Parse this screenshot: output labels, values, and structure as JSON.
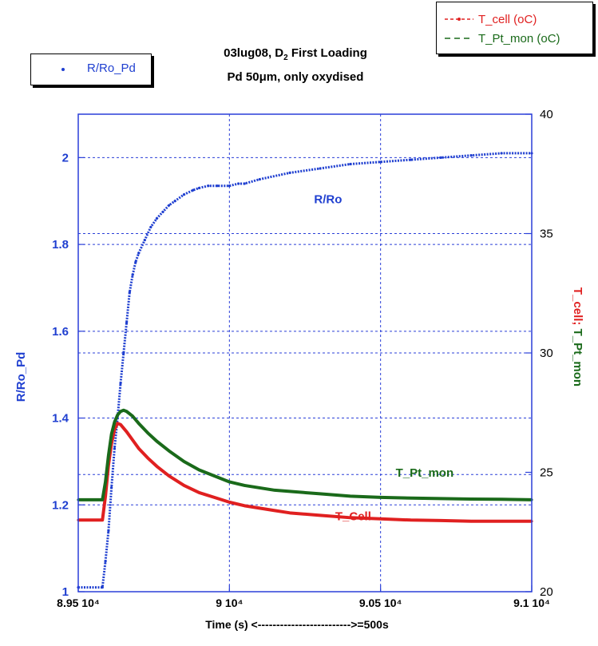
{
  "title": {
    "line1_pre": "03lug08, D",
    "line1_sub": "2",
    "line1_post": " First Loading",
    "line2_pre": "Pd 50",
    "line2_mu": "μm",
    "line2_post": ", only oxydised"
  },
  "legend_left": {
    "label": "R/Ro_Pd",
    "color": "#1f3fd0"
  },
  "legend_right": [
    {
      "label": "T_cell (oC)",
      "color": "#e02020"
    },
    {
      "label": "T_Pt_mon (oC)",
      "color": "#1a6a1a"
    }
  ],
  "chart_data": {
    "type": "line",
    "title": "03lug08, D2 First Loading / Pd 50μm, only oxydised",
    "xlabel": "Time (s)  <------------------------->=500s",
    "ylabel_left": "R/Ro_Pd",
    "ylabel_right": "T_cell; T_Pt_mon",
    "xlim": [
      89500,
      91000
    ],
    "ylim_left": [
      1.0,
      2.1
    ],
    "ylim_right": [
      20,
      40
    ],
    "x_ticks": [
      89500,
      90000,
      90500,
      91000
    ],
    "x_tick_labels": [
      "8.95 10⁴",
      "9 10⁴",
      "9.05 10⁴",
      "9.1 10⁴"
    ],
    "y_left_ticks": [
      1.0,
      1.2,
      1.4,
      1.6,
      1.8,
      2.0
    ],
    "y_left_tick_labels": [
      "1",
      "1.2",
      "1.4",
      "1.6",
      "1.8",
      "2"
    ],
    "y_right_ticks": [
      20,
      25,
      30,
      35,
      40
    ],
    "y_right_tick_labels": [
      "20",
      "25",
      "30",
      "35",
      "40"
    ],
    "grid": true,
    "extra_dashed_y_left": [
      1.27,
      1.55,
      1.825
    ],
    "series": [
      {
        "name": "R/Ro_Pd",
        "axis": "left",
        "color": "#1f3fd0",
        "x": [
          89500,
          89580,
          89590,
          89600,
          89610,
          89620,
          89630,
          89640,
          89650,
          89660,
          89670,
          89680,
          89690,
          89700,
          89720,
          89740,
          89760,
          89780,
          89800,
          89820,
          89850,
          89880,
          89900,
          89930,
          89960,
          90000,
          90030,
          90050,
          90100,
          90200,
          90300,
          90400,
          90500,
          90600,
          90700,
          90800,
          90900,
          91000
        ],
        "values": [
          1.01,
          1.01,
          1.07,
          1.14,
          1.24,
          1.33,
          1.4,
          1.48,
          1.55,
          1.62,
          1.69,
          1.73,
          1.76,
          1.78,
          1.81,
          1.84,
          1.86,
          1.875,
          1.89,
          1.9,
          1.915,
          1.925,
          1.93,
          1.935,
          1.935,
          1.935,
          1.94,
          1.94,
          1.95,
          1.965,
          1.975,
          1.985,
          1.99,
          1.995,
          2.0,
          2.005,
          2.01,
          2.01
        ]
      },
      {
        "name": "T_cell (oC)",
        "axis": "right",
        "color": "#e02020",
        "x": [
          89500,
          89580,
          89590,
          89600,
          89610,
          89620,
          89630,
          89640,
          89660,
          89680,
          89700,
          89730,
          89760,
          89800,
          89850,
          89900,
          89950,
          90000,
          90050,
          90100,
          90150,
          90200,
          90300,
          90400,
          90500,
          90600,
          90700,
          90800,
          90900,
          91000
        ],
        "values": [
          23.0,
          23.0,
          24.0,
          25.3,
          26.2,
          26.8,
          27.05,
          27.0,
          26.7,
          26.35,
          26.0,
          25.6,
          25.25,
          24.85,
          24.45,
          24.15,
          23.95,
          23.75,
          23.6,
          23.5,
          23.4,
          23.3,
          23.2,
          23.1,
          23.05,
          23.0,
          22.98,
          22.95,
          22.95,
          22.95
        ]
      },
      {
        "name": "T_Pt_mon (oC)",
        "axis": "right",
        "color": "#1a6a1a",
        "x": [
          89500,
          89580,
          89590,
          89600,
          89610,
          89620,
          89630,
          89640,
          89650,
          89660,
          89680,
          89700,
          89730,
          89760,
          89800,
          89850,
          89900,
          89950,
          90000,
          90050,
          90100,
          90150,
          90200,
          90300,
          90400,
          90500,
          90600,
          90700,
          90800,
          90900,
          91000
        ],
        "values": [
          23.85,
          23.85,
          24.6,
          25.7,
          26.6,
          27.1,
          27.4,
          27.55,
          27.6,
          27.55,
          27.35,
          27.05,
          26.65,
          26.3,
          25.9,
          25.45,
          25.1,
          24.85,
          24.6,
          24.45,
          24.35,
          24.25,
          24.2,
          24.1,
          24.0,
          23.95,
          23.92,
          23.9,
          23.88,
          23.87,
          23.85
        ]
      }
    ],
    "annotations": [
      {
        "text": "R/Ro",
        "color": "#1f3fd0",
        "x": 90280,
        "axis": "left",
        "y": 1.895
      },
      {
        "text": "T_Pt_mon",
        "color": "#1a6a1a",
        "x": 90550,
        "axis": "left",
        "y": 1.265
      },
      {
        "text": "T_Cell",
        "color": "#e02020",
        "x": 90350,
        "axis": "left",
        "y": 1.165
      }
    ]
  }
}
